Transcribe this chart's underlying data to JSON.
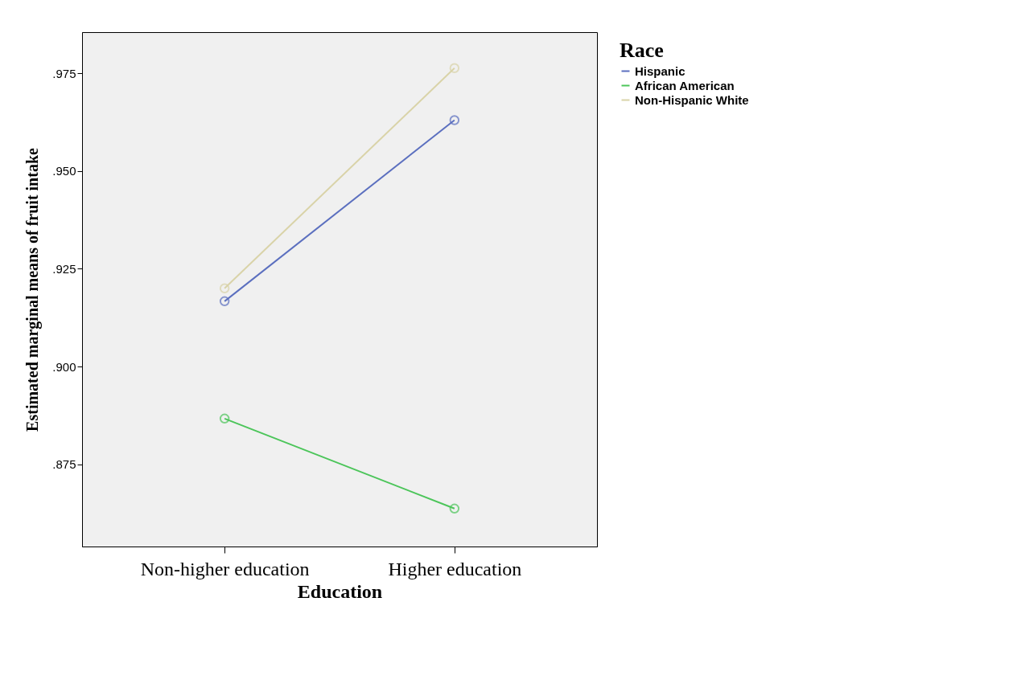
{
  "chart_data": {
    "type": "line",
    "xlabel": "Education",
    "ylabel": "Estimated marginal means of fruit intake",
    "legend_title": "Race",
    "categories": [
      "Non-higher education",
      "Higher education"
    ],
    "series": [
      {
        "name": "Hispanic",
        "color": "#5b6fbf",
        "values": [
          0.9167,
          0.963
        ]
      },
      {
        "name": "African American",
        "color": "#4cc55a",
        "values": [
          0.8867,
          0.8637
        ]
      },
      {
        "name": "Non-Hispanic White",
        "color": "#d9d3a8",
        "values": [
          0.92,
          0.9763
        ]
      }
    ],
    "ylim": [
      0.854,
      0.9855
    ],
    "yticks": [
      {
        "value": 0.875,
        "label": ".875"
      },
      {
        "value": 0.9,
        "label": ".900"
      },
      {
        "value": 0.925,
        "label": ".925"
      },
      {
        "value": 0.95,
        "label": ".950"
      },
      {
        "value": 0.975,
        "label": ".975"
      }
    ],
    "marker": "circle",
    "grid": false,
    "legend": "top right"
  }
}
